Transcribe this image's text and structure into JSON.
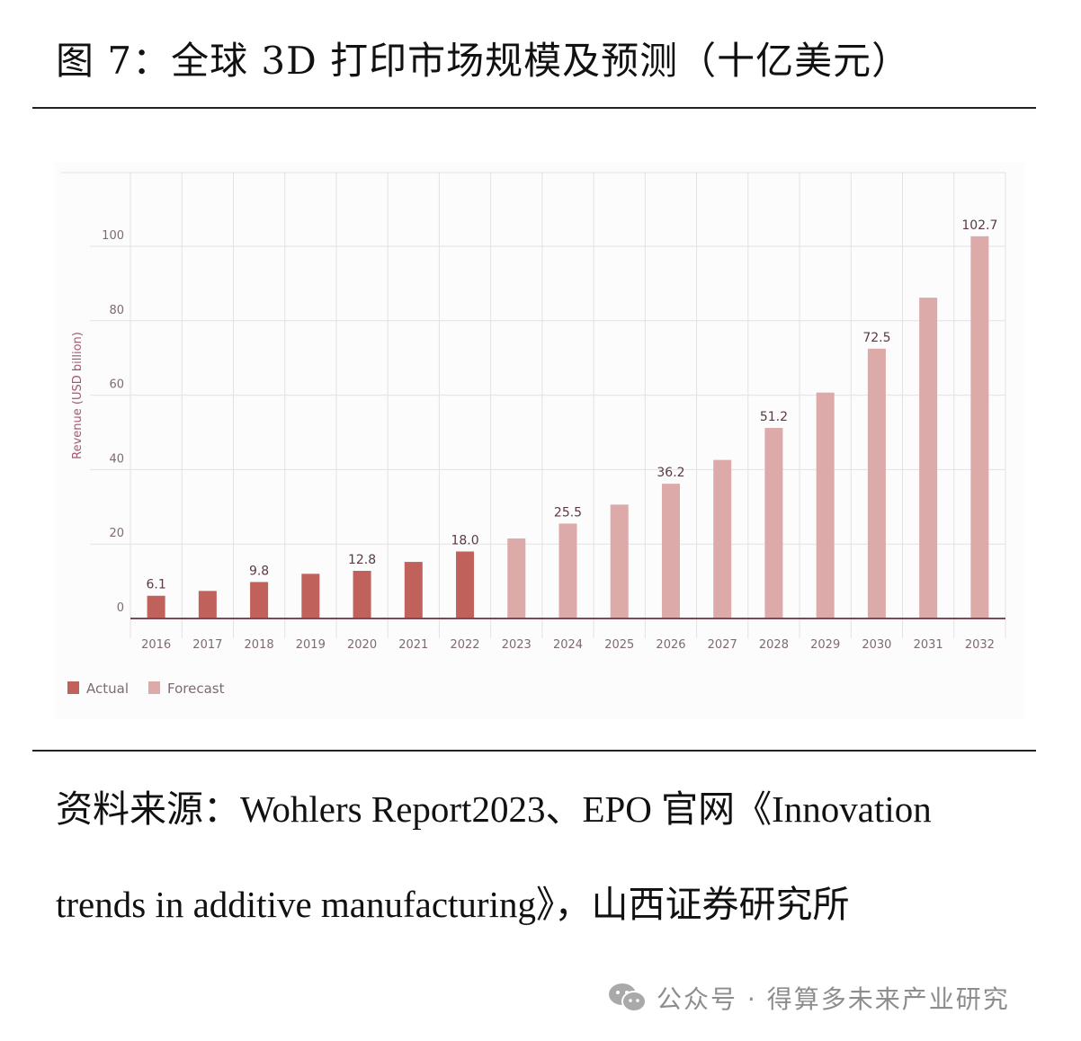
{
  "title": "图 7：全球 3D 打印市场规模及预测（十亿美元）",
  "source": {
    "line1": "资料来源：Wohlers Report2023、EPO 官网《Innovation",
    "line2": "trends in additive manufacturing》，山西证券研究所"
  },
  "watermark": {
    "icon": "wechat-icon",
    "text": "公众号 · 得算多未来产业研究"
  },
  "colors": {
    "actual": "#c0615c",
    "forecast": "#dcaaa9",
    "axis": "#7a4a55",
    "grid": "#e2e2e6",
    "tick_text": "#7d6a72",
    "ylabel": "#a05a6e"
  },
  "chart_data": {
    "type": "bar",
    "title": "",
    "xlabel": "",
    "ylabel": "Revenue (USD billion)",
    "ylim": [
      0,
      110
    ],
    "yticks": [
      0,
      20,
      40,
      60,
      80,
      100
    ],
    "grid": true,
    "legend_position": "bottom-left",
    "categories": [
      "2016",
      "2017",
      "2018",
      "2019",
      "2020",
      "2021",
      "2022",
      "2023",
      "2024",
      "2025",
      "2026",
      "2027",
      "2028",
      "2029",
      "2030",
      "2031",
      "2032"
    ],
    "series": [
      {
        "name": "Actual",
        "values": [
          6.1,
          7.4,
          9.8,
          12.0,
          12.8,
          15.2,
          18.0,
          null,
          null,
          null,
          null,
          null,
          null,
          null,
          null,
          null,
          null
        ]
      },
      {
        "name": "Forecast",
        "values": [
          null,
          null,
          null,
          null,
          null,
          null,
          null,
          21.5,
          25.5,
          30.6,
          36.2,
          42.6,
          51.2,
          60.7,
          72.5,
          86.2,
          102.7
        ]
      }
    ],
    "data_labels": {
      "2016": "6.1",
      "2018": "9.8",
      "2020": "12.8",
      "2022": "18.0",
      "2024": "25.5",
      "2026": "36.2",
      "2028": "51.2",
      "2030": "72.5",
      "2032": "102.7"
    },
    "legend": [
      "Actual",
      "Forecast"
    ]
  }
}
